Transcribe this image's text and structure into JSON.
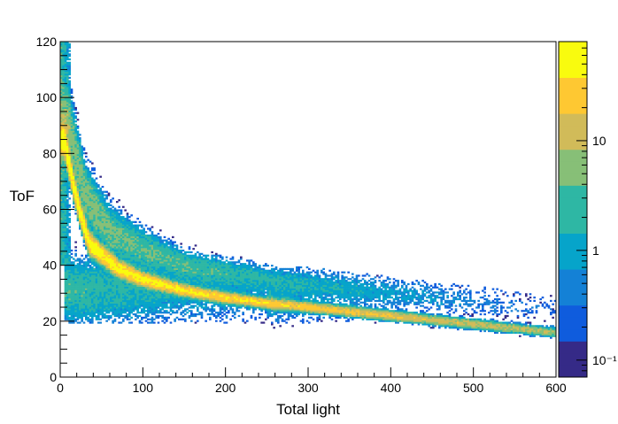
{
  "chart_data": {
    "type": "heatmap",
    "title": "",
    "xlabel": "Total light",
    "ylabel": "ToF",
    "xlim": [
      0,
      600
    ],
    "ylim": [
      0,
      120
    ],
    "xticks": [
      0,
      100,
      200,
      300,
      400,
      500,
      600
    ],
    "yticks": [
      0,
      20,
      40,
      60,
      80,
      100,
      120
    ],
    "colorbar": {
      "scale": "log",
      "range": [
        0.07,
        80
      ],
      "tick_labels": [
        {
          "label": "10⁻¹",
          "value": 0.1
        },
        {
          "label": "1",
          "value": 1
        },
        {
          "label": "10",
          "value": 10
        }
      ],
      "palette": [
        "#352a87",
        "#0f5cdd",
        "#1481d6",
        "#06a4ca",
        "#2eb7a4",
        "#87bf77",
        "#d1bb59",
        "#fec832",
        "#f9fb0e"
      ]
    },
    "distribution": {
      "band_points": [
        {
          "x": 5,
          "y": 85
        },
        {
          "x": 15,
          "y": 70
        },
        {
          "x": 25,
          "y": 58
        },
        {
          "x": 35,
          "y": 48
        },
        {
          "x": 50,
          "y": 44
        },
        {
          "x": 70,
          "y": 39
        },
        {
          "x": 100,
          "y": 35
        },
        {
          "x": 150,
          "y": 31
        },
        {
          "x": 200,
          "y": 28.5
        },
        {
          "x": 250,
          "y": 26.5
        },
        {
          "x": 300,
          "y": 25
        }
      ],
      "secondary_band_points": [
        {
          "x": 10,
          "y": 90
        },
        {
          "x": 30,
          "y": 65
        },
        {
          "x": 60,
          "y": 52
        },
        {
          "x": 100,
          "y": 46
        },
        {
          "x": 150,
          "y": 40
        },
        {
          "x": 250,
          "y": 35
        },
        {
          "x": 400,
          "y": 30
        }
      ],
      "bulk_region": {
        "x": [
          5,
          300
        ],
        "y": [
          22,
          40
        ]
      },
      "tail_max_x": 630,
      "peak_count": 80
    }
  }
}
